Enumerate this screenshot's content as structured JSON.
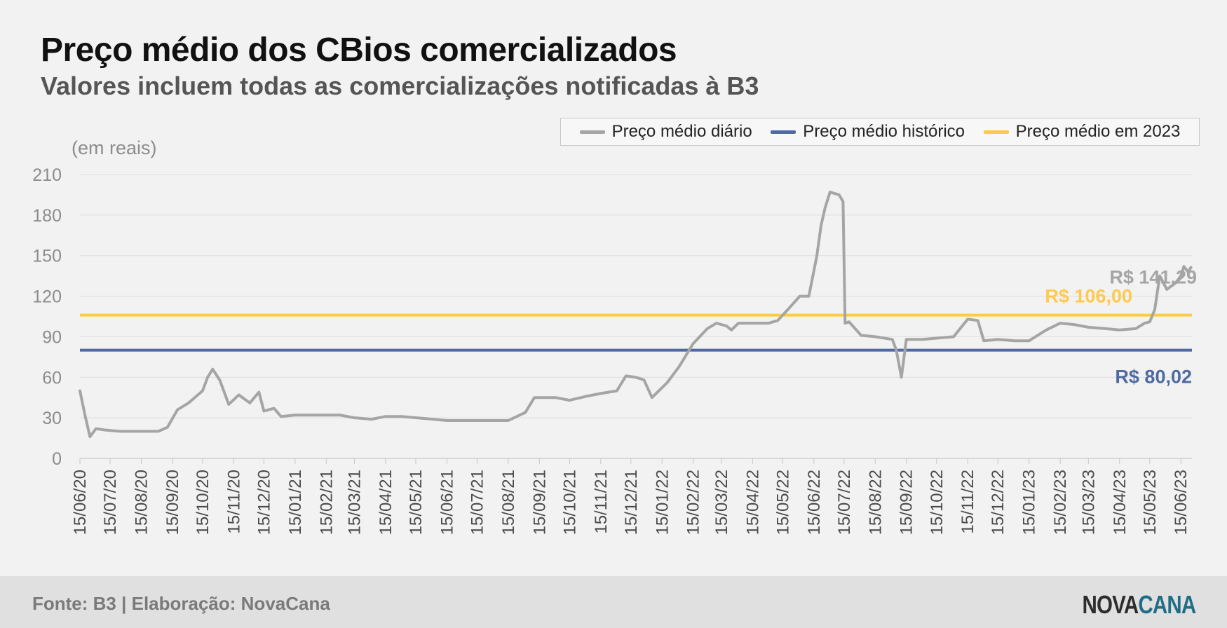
{
  "chart_data": {
    "type": "line",
    "title": "Preço médio dos CBios comercializados",
    "subtitle": "Valores incluem todas as comercializações notificadas à B3",
    "ylabel": "(em reais)",
    "ylim": [
      0,
      210
    ],
    "yticks": [
      0,
      30,
      60,
      90,
      120,
      150,
      180,
      210
    ],
    "grid": true,
    "legend_position": "top-right",
    "x_tick_labels": [
      "15/06/20",
      "15/07/20",
      "15/08/20",
      "15/09/20",
      "15/10/20",
      "15/11/20",
      "15/12/20",
      "15/01/21",
      "15/02/21",
      "15/03/21",
      "15/04/21",
      "15/05/21",
      "15/06/21",
      "15/07/21",
      "15/08/21",
      "15/09/21",
      "15/10/21",
      "15/11/21",
      "15/12/21",
      "15/01/22",
      "15/02/22",
      "15/03/22",
      "15/04/22",
      "15/05/22",
      "15/06/22",
      "15/07/22",
      "15/08/22",
      "15/09/22",
      "15/10/22",
      "15/11/22",
      "15/12/22",
      "15/01/23",
      "15/02/23",
      "15/03/23",
      "15/04/23",
      "15/05/23",
      "15/06/23"
    ],
    "series": [
      {
        "name": "Preço médio diário",
        "color": "#a5a5a5",
        "x": [
          "15/06/20",
          "20/06/20",
          "25/06/20",
          "01/07/20",
          "10/07/20",
          "25/07/20",
          "15/08/20",
          "01/09/20",
          "10/09/20",
          "20/09/20",
          "01/10/20",
          "15/10/20",
          "20/10/20",
          "25/10/20",
          "01/11/20",
          "05/11/20",
          "10/11/20",
          "20/11/20",
          "01/12/20",
          "10/12/20",
          "15/12/20",
          "25/12/20",
          "01/01/21",
          "15/01/21",
          "01/03/21",
          "15/03/21",
          "01/04/21",
          "15/04/21",
          "01/05/21",
          "01/06/21",
          "15/06/21",
          "01/07/21",
          "01/08/21",
          "15/08/21",
          "01/09/21",
          "10/09/21",
          "01/10/21",
          "15/10/21",
          "01/11/21",
          "15/11/21",
          "01/12/21",
          "10/12/21",
          "20/12/21",
          "28/12/21",
          "05/01/22",
          "20/01/22",
          "01/02/22",
          "15/02/22",
          "01/03/22",
          "10/03/22",
          "20/03/22",
          "25/03/22",
          "01/04/22",
          "01/05/22",
          "10/05/22",
          "20/05/22",
          "01/06/22",
          "10/06/22",
          "18/06/22",
          "22/06/22",
          "26/06/22",
          "01/07/22",
          "10/07/22",
          "14/07/22",
          "16/07/22",
          "20/07/22",
          "01/08/22",
          "15/08/22",
          "01/09/22",
          "05/09/22",
          "10/09/22",
          "15/09/22",
          "01/10/22",
          "01/11/22",
          "15/11/22",
          "25/11/22",
          "01/12/22",
          "15/12/22",
          "01/01/23",
          "15/01/23",
          "01/02/23",
          "15/02/23",
          "01/03/23",
          "15/03/23",
          "01/04/23",
          "15/04/23",
          "01/05/23",
          "10/05/23",
          "15/05/23",
          "20/05/23",
          "25/05/23",
          "01/06/23",
          "10/06/23",
          "15/06/23",
          "18/06/23",
          "22/06/23",
          "25/06/23"
        ],
        "y": [
          50,
          32,
          16,
          22,
          21,
          20,
          20,
          20,
          23,
          36,
          41,
          50,
          60,
          66,
          58,
          50,
          40,
          47,
          41,
          49,
          35,
          37,
          31,
          32,
          32,
          30,
          29,
          31,
          31,
          29,
          28,
          28,
          28,
          28,
          34,
          45,
          45,
          43,
          46,
          48,
          50,
          61,
          60,
          58,
          45,
          56,
          68,
          85,
          96,
          100,
          98,
          95,
          100,
          100,
          102,
          110,
          120,
          120,
          150,
          172,
          185,
          197,
          195,
          190,
          100,
          101,
          91,
          90,
          88,
          80,
          60,
          88,
          88,
          90,
          103,
          102,
          87,
          88,
          87,
          87,
          95,
          100,
          99,
          97,
          96,
          95,
          96,
          100,
          101,
          110,
          135,
          125,
          130,
          135,
          142,
          138,
          141.29
        ]
      },
      {
        "name": "Preço médio histórico",
        "color": "#4e6aa1",
        "constant": 80.02,
        "label": "R$ 80,02"
      },
      {
        "name": "Preço médio em 2023",
        "color": "#ffc94d",
        "constant": 106.0,
        "label": "R$ 106,00"
      }
    ],
    "annotations": [
      {
        "text": "R$ 141,29",
        "series": "Preço médio diário",
        "color": "#a5a5a5"
      },
      {
        "text": "R$ 106,00",
        "series": "Preço médio em 2023",
        "color": "#ffc94d"
      },
      {
        "text": "R$ 80,02",
        "series": "Preço médio histórico",
        "color": "#4e6aa1"
      }
    ]
  },
  "footer": {
    "source": "Fonte: B3 | Elaboração: NovaCana",
    "logo_part1": "NOVA",
    "logo_part2": "CANA"
  }
}
